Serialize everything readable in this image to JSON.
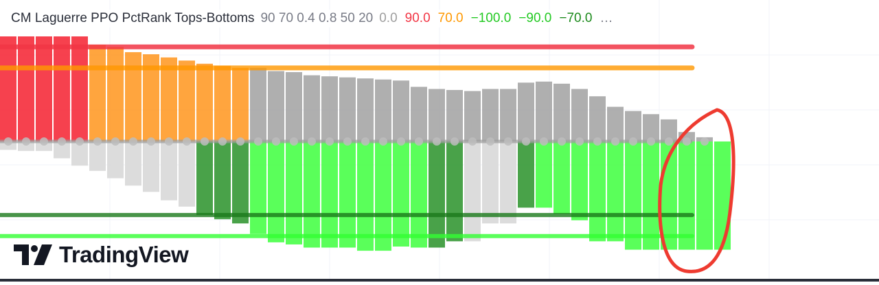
{
  "legend": {
    "title": "CM  Laguerre PPO PctRank Tops-Bottoms",
    "params": "90 70 0.4 0.8 50 20",
    "values": [
      {
        "text": "0.0",
        "color": "#9e9e9e"
      },
      {
        "text": "90.0",
        "color": "#f23645"
      },
      {
        "text": "70.0",
        "color": "#ff9800"
      },
      {
        "text": "−100.0",
        "color": "#22c922"
      },
      {
        "text": "−90.0",
        "color": "#22c922"
      },
      {
        "text": "−70.0",
        "color": "#1b8a1b"
      }
    ],
    "more": "…"
  },
  "logo": {
    "text": "TradingView",
    "icon": "tradingview-logo-icon"
  },
  "colors": {
    "red": "#f5313f",
    "orange": "#ff9d2e",
    "gray": "#a8a8a8",
    "light_gray": "#d9d9d9",
    "bright_green": "#4cff4c",
    "dark_green": "#3a9a3a",
    "line_red": "#f23645",
    "line_orange": "#ff9800",
    "line_green": "#4caf50",
    "line_bright_green": "#33ff33",
    "zero_line": "#9e9e9e",
    "annotation": "#ee3b30"
  },
  "chart_data": {
    "type": "bar",
    "y_visible_range": [
      -125,
      135
    ],
    "reference_lines": [
      {
        "value": 90,
        "color": "#f23645"
      },
      {
        "value": 70,
        "color": "#ff9800"
      },
      {
        "value": 0,
        "color": "#9e9e9e"
      },
      {
        "value": -70,
        "color": "#1b8a1b"
      },
      {
        "value": -90,
        "color": "#33ff33"
      }
    ],
    "series": [
      {
        "role": "upper",
        "values": [
          100,
          100,
          100,
          100,
          100,
          92,
          90,
          85,
          83,
          80,
          77,
          74,
          72,
          70,
          70,
          67,
          66,
          63,
          62,
          61,
          60,
          59,
          58,
          52,
          50,
          49,
          48,
          50,
          50,
          56,
          57,
          55,
          50,
          43,
          33,
          29,
          26,
          21,
          9,
          4
        ],
        "colors": [
          "red",
          "red",
          "red",
          "red",
          "red",
          "orange",
          "orange",
          "orange",
          "orange",
          "orange",
          "orange",
          "orange",
          "orange",
          "orange",
          "gray",
          "gray",
          "gray",
          "gray",
          "gray",
          "gray",
          "gray",
          "gray",
          "gray",
          "gray",
          "gray",
          "gray",
          "gray",
          "gray",
          "gray",
          "gray",
          "gray",
          "gray",
          "gray",
          "gray",
          "gray",
          "gray",
          "gray",
          "gray",
          "gray",
          "gray"
        ]
      },
      {
        "role": "lower",
        "values": [
          -8,
          -9,
          -9,
          -16,
          -23,
          -28,
          -35,
          -42,
          -48,
          -56,
          -62,
          -70,
          -74,
          -78,
          -88,
          -96,
          -98,
          -101,
          -101,
          -101,
          -104,
          -104,
          -100,
          -101,
          -101,
          -95,
          -95,
          -78,
          -78,
          -63,
          -63,
          -69,
          -75,
          -95,
          -95,
          -103,
          -103,
          -103,
          -103,
          -103,
          -103
        ],
        "colors": [
          "light_gray",
          "light_gray",
          "light_gray",
          "light_gray",
          "light_gray",
          "light_gray",
          "light_gray",
          "light_gray",
          "light_gray",
          "light_gray",
          "light_gray",
          "dark_green",
          "dark_green",
          "dark_green",
          "bright_green",
          "bright_green",
          "bright_green",
          "bright_green",
          "bright_green",
          "bright_green",
          "bright_green",
          "bright_green",
          "bright_green",
          "bright_green",
          "dark_green",
          "dark_green",
          "light_gray",
          "light_gray",
          "light_gray",
          "dark_green",
          "bright_green",
          "bright_green",
          "bright_green",
          "bright_green",
          "bright_green",
          "bright_green",
          "bright_green",
          "bright_green",
          "bright_green",
          "bright_green",
          "bright_green"
        ]
      }
    ]
  }
}
